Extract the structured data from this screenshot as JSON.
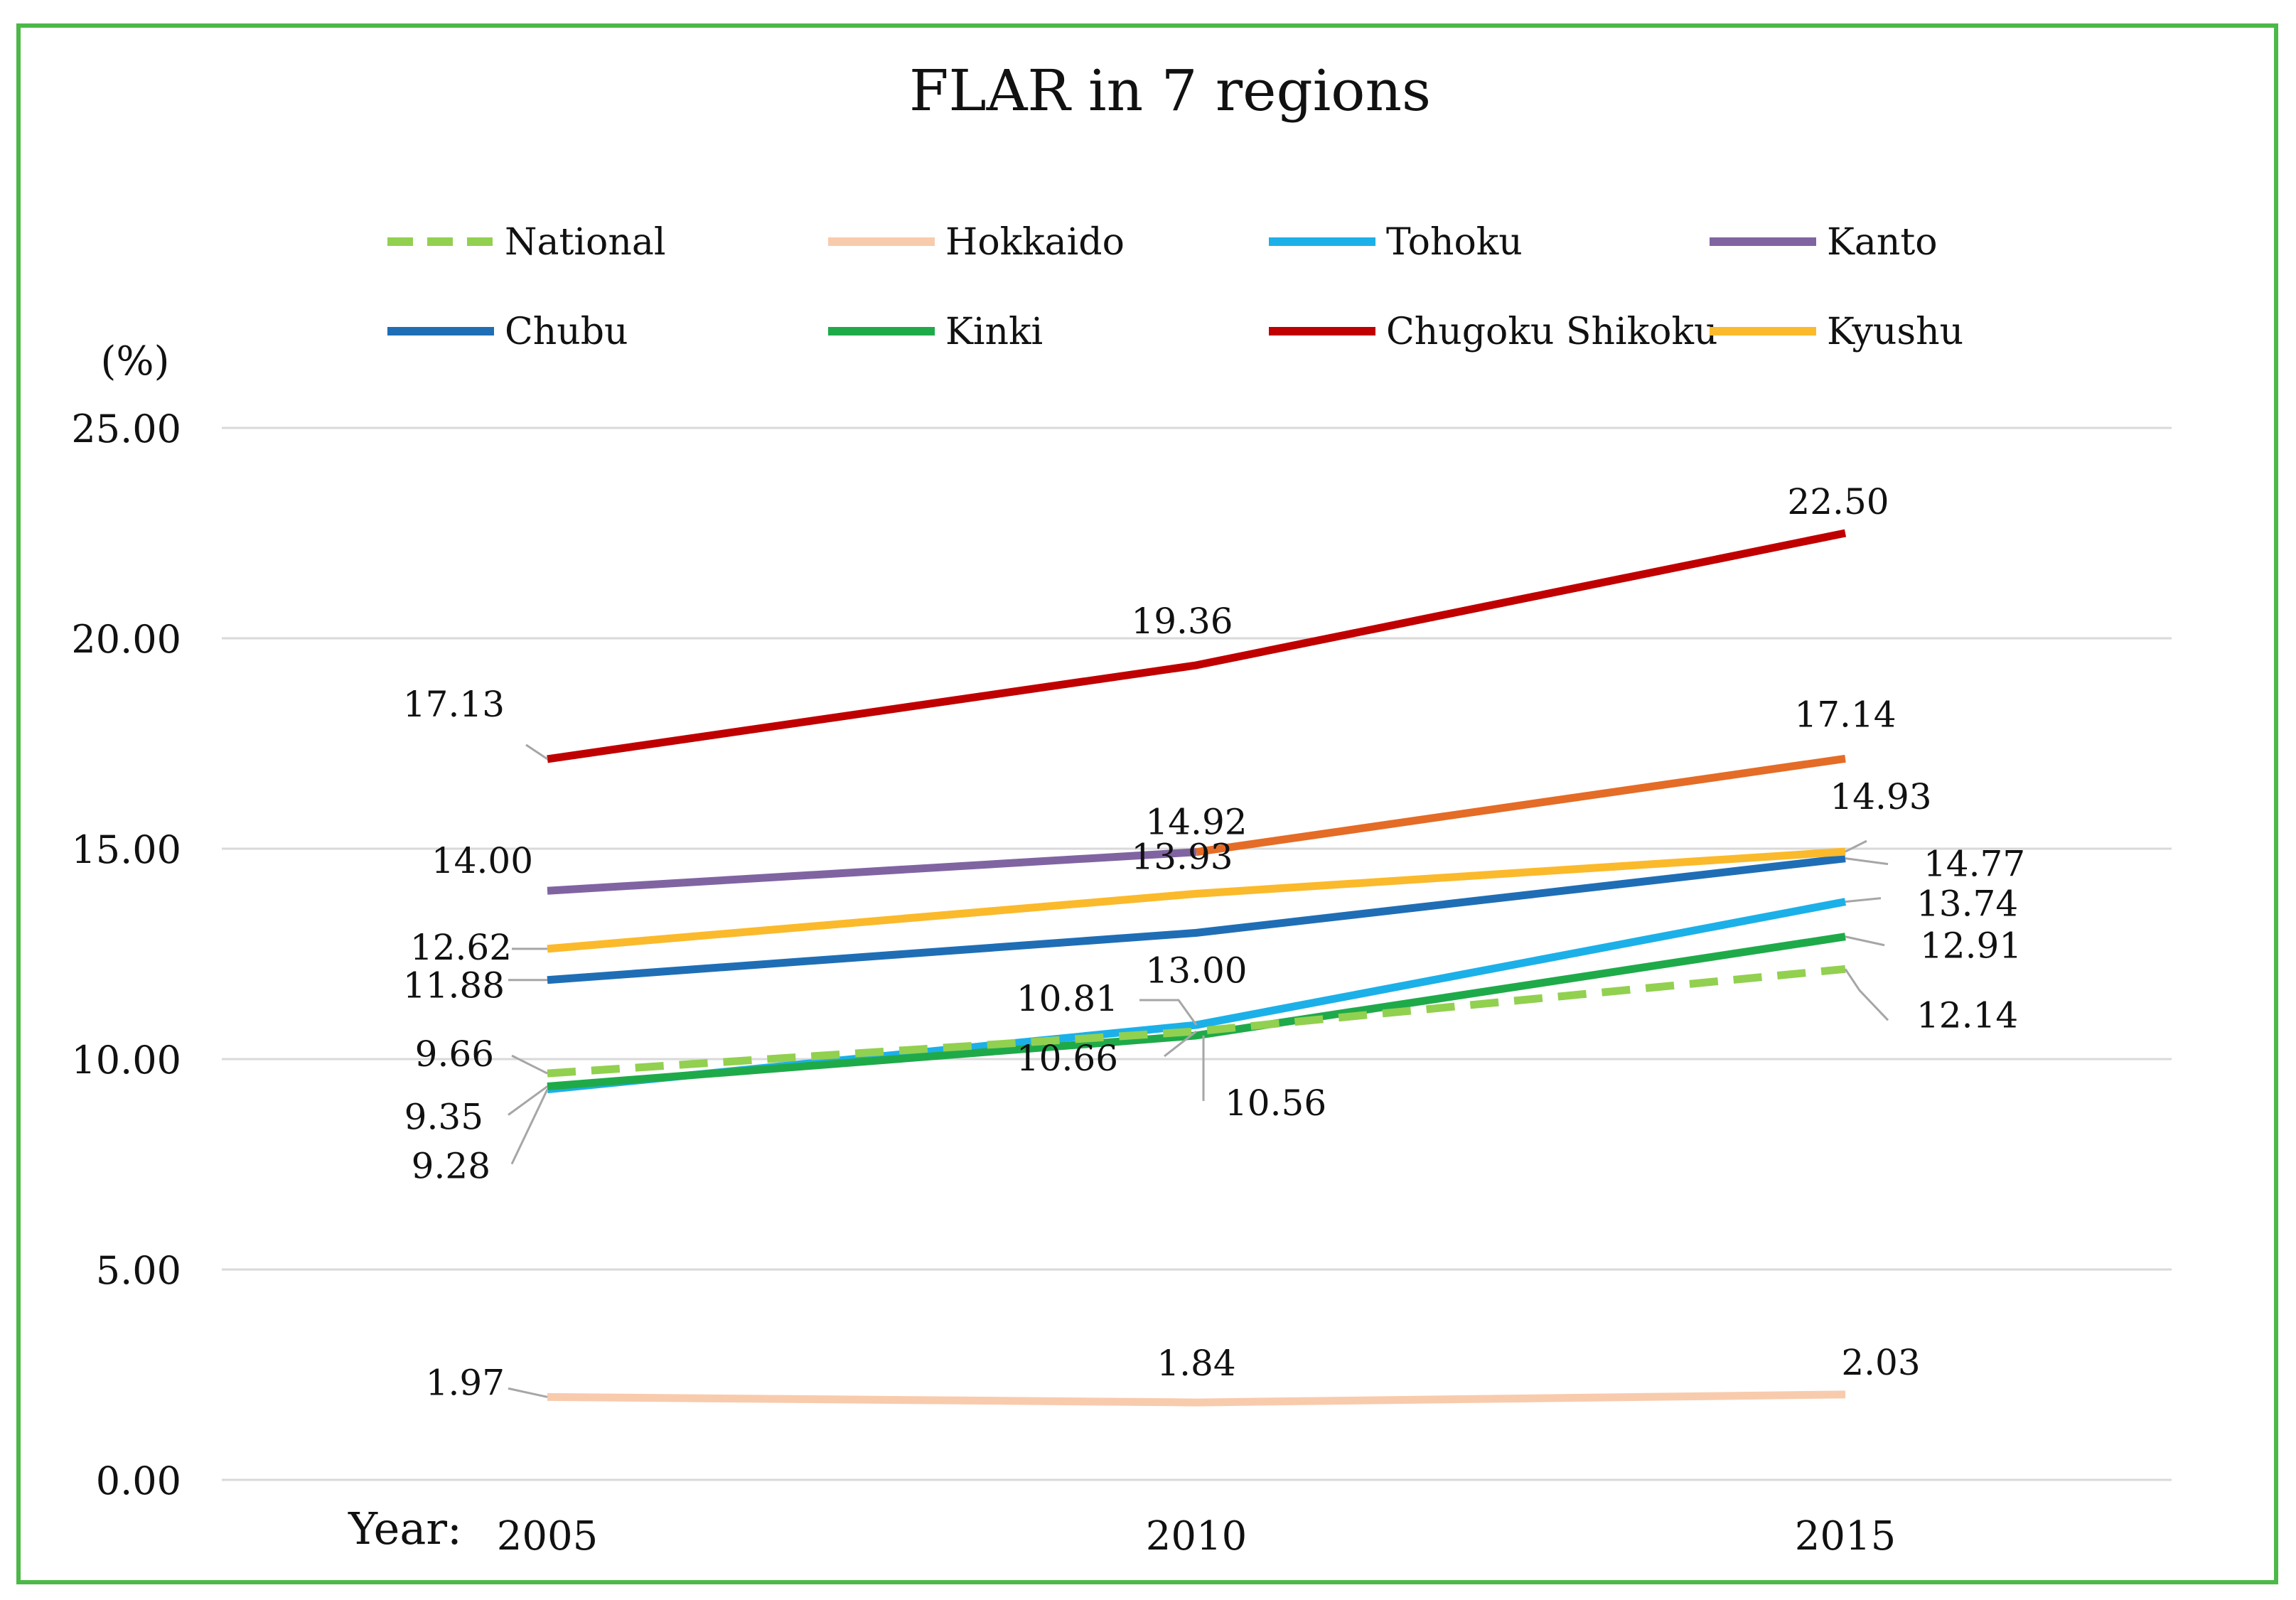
{
  "chart_data": {
    "type": "line",
    "title": "FLAR in 7 regions",
    "ylabel": "(%)",
    "xlabel": "Year:",
    "x": [
      "2005",
      "2010",
      "2015"
    ],
    "ylim": [
      0,
      25
    ],
    "yticks": [
      "0.00",
      "5.00",
      "10.00",
      "15.00",
      "20.00",
      "25.00"
    ],
    "grid": true,
    "legend_position": "top",
    "border_color": "#4CB848",
    "gridline_color": "#D9D9D9",
    "series": [
      {
        "name": "National",
        "values": [
          9.66,
          10.66,
          12.14
        ],
        "color": "#92D050",
        "dashed": true,
        "labels": [
          "9.66",
          "10.66",
          "12.14"
        ]
      },
      {
        "name": "Hokkaido",
        "values": [
          1.97,
          1.84,
          2.03
        ],
        "color": "#F8CBAD",
        "dashed": false,
        "labels": [
          "1.97",
          "1.84",
          "2.03"
        ]
      },
      {
        "name": "Tohoku",
        "values": [
          9.28,
          10.81,
          13.74
        ],
        "color": "#1CB0E8",
        "dashed": false,
        "labels": [
          "9.28",
          "10.81",
          "13.74"
        ]
      },
      {
        "name": "Kanto",
        "values": [
          14.0,
          14.92,
          17.14
        ],
        "color": "#8064A2",
        "second_color": "#E46C26",
        "dashed": false,
        "labels": [
          "14.00",
          "14.92",
          "17.14"
        ]
      },
      {
        "name": "Chubu",
        "values": [
          11.88,
          13.0,
          14.77
        ],
        "color": "#1F6EB5",
        "dashed": false,
        "labels": [
          "11.88",
          "13.00",
          "14.77"
        ]
      },
      {
        "name": "Kinki",
        "values": [
          9.35,
          10.56,
          12.91
        ],
        "color": "#1FAA4A",
        "dashed": false,
        "labels": [
          "9.35",
          "10.56",
          "12.91"
        ]
      },
      {
        "name": "Chugoku Shikoku",
        "values": [
          17.13,
          19.36,
          22.5
        ],
        "color": "#C00000",
        "dashed": false,
        "labels": [
          "17.13",
          "19.36",
          "22.50"
        ]
      },
      {
        "name": "Kyushu",
        "values": [
          12.62,
          13.93,
          14.93
        ],
        "color": "#FBBA2B",
        "dashed": false,
        "labels": [
          "12.62",
          "13.93",
          "14.93"
        ]
      }
    ]
  }
}
